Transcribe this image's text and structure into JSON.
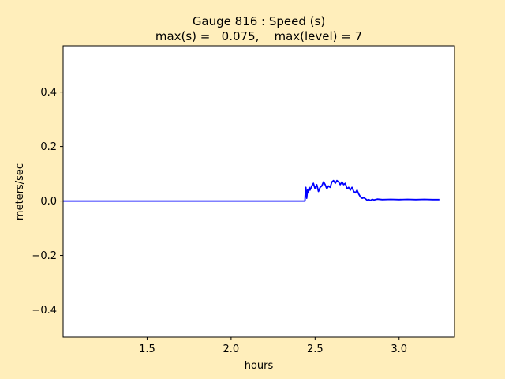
{
  "figure": {
    "background": "#ffeebb",
    "plot_background": "#ffffff",
    "line_color": "#0000ff"
  },
  "chart_data": {
    "type": "line",
    "title": "Gauge 816 : Speed (s)",
    "subtitle": "max(s) =   0.075,    max(level) = 7",
    "xlabel": "hours",
    "ylabel": "meters/sec",
    "xlim": [
      1.0,
      3.33
    ],
    "ylim": [
      -0.5,
      0.57
    ],
    "grid": false,
    "x_ticks": [
      1.5,
      2.0,
      2.5,
      3.0
    ],
    "x_tick_labels": [
      "1.5",
      "2.0",
      "2.5",
      "3.0"
    ],
    "y_ticks": [
      -0.4,
      -0.2,
      0.0,
      0.2,
      0.4
    ],
    "y_tick_labels": [
      "−0.4",
      "−0.2",
      "0.0",
      "0.2",
      "0.4"
    ],
    "series": [
      {
        "color": "#0000ff",
        "x": [
          1.0,
          2.44,
          2.441,
          2.445,
          2.45,
          2.455,
          2.46,
          2.465,
          2.47,
          2.48,
          2.49,
          2.5,
          2.51,
          2.52,
          2.53,
          2.54,
          2.55,
          2.56,
          2.57,
          2.58,
          2.59,
          2.6,
          2.61,
          2.62,
          2.63,
          2.64,
          2.65,
          2.66,
          2.67,
          2.68,
          2.69,
          2.7,
          2.71,
          2.72,
          2.73,
          2.74,
          2.75,
          2.76,
          2.77,
          2.78,
          2.79,
          2.8,
          2.81,
          2.82,
          2.83,
          2.84,
          2.85,
          2.87,
          2.9,
          2.95,
          3.0,
          3.05,
          3.1,
          3.15,
          3.2,
          3.24
        ],
        "y": [
          0.0,
          0.0,
          0.02,
          0.05,
          0.01,
          0.04,
          0.03,
          0.05,
          0.04,
          0.055,
          0.065,
          0.045,
          0.06,
          0.035,
          0.05,
          0.055,
          0.07,
          0.06,
          0.045,
          0.055,
          0.05,
          0.07,
          0.075,
          0.065,
          0.075,
          0.07,
          0.06,
          0.07,
          0.06,
          0.065,
          0.045,
          0.05,
          0.04,
          0.05,
          0.035,
          0.03,
          0.04,
          0.025,
          0.015,
          0.01,
          0.012,
          0.008,
          0.003,
          0.005,
          0.002,
          0.006,
          0.004,
          0.007,
          0.005,
          0.006,
          0.005,
          0.006,
          0.005,
          0.006,
          0.005,
          0.005
        ]
      }
    ]
  }
}
